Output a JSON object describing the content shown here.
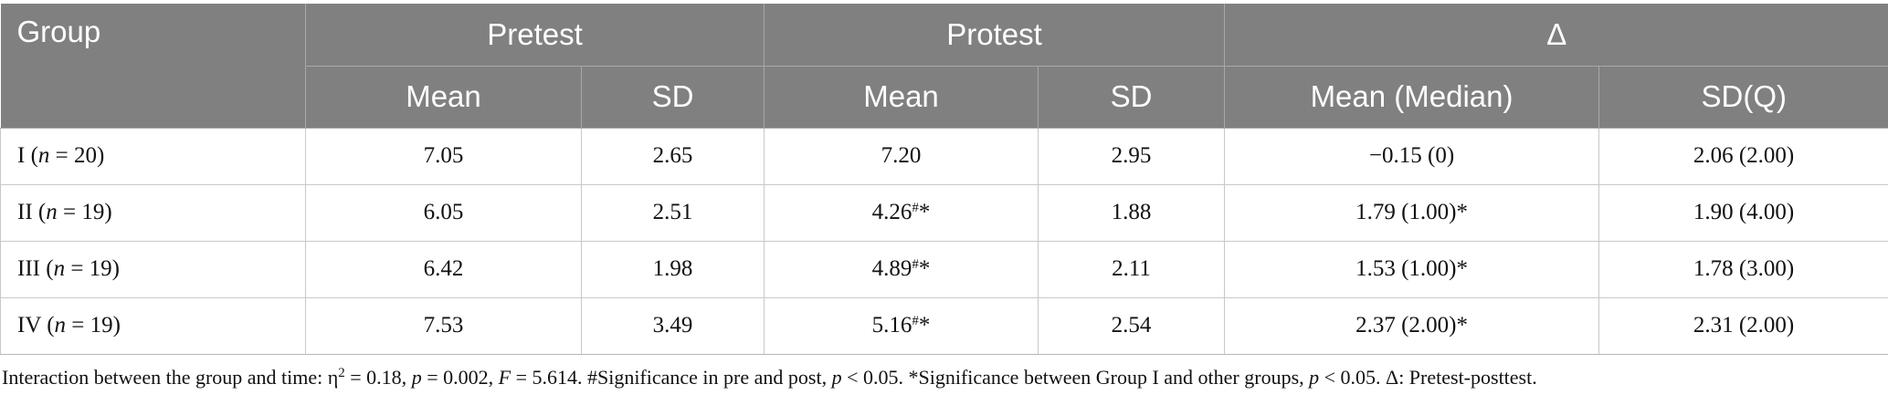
{
  "table": {
    "header": {
      "group": "Group",
      "pretest": "Pretest",
      "protest": "Protest",
      "delta": "Δ",
      "mean_1": "Mean",
      "sd_1": "SD",
      "mean_2": "Mean",
      "sd_2": "SD",
      "mean_median": "Mean (Median)",
      "sdq": "SD(Q)"
    },
    "rows": [
      {
        "group_roman": "I",
        "n_label": "n",
        "n_value": " = 20)",
        "pre_mean": "7.05",
        "pre_sd": "2.65",
        "post_mean": "7.20",
        "post_mark": "",
        "post_star": "",
        "post_sd": "2.95",
        "delta_mean": "−0.15 (0)",
        "delta_sd": "2.06 (2.00)"
      },
      {
        "group_roman": "II",
        "n_label": "n",
        "n_value": " = 19)",
        "pre_mean": "6.05",
        "pre_sd": "2.51",
        "post_mean": "4.26",
        "post_mark": "#",
        "post_star": "*",
        "post_sd": "1.88",
        "delta_mean": "1.79 (1.00)*",
        "delta_sd": "1.90 (4.00)"
      },
      {
        "group_roman": "III",
        "n_label": "n",
        "n_value": " = 19)",
        "pre_mean": "6.42",
        "pre_sd": "1.98",
        "post_mean": "4.89",
        "post_mark": "#",
        "post_star": "*",
        "post_sd": "2.11",
        "delta_mean": "1.53 (1.00)*",
        "delta_sd": "1.78 (3.00)"
      },
      {
        "group_roman": "IV",
        "n_label": "n",
        "n_value": " = 19)",
        "pre_mean": "7.53",
        "pre_sd": "3.49",
        "post_mean": "5.16",
        "post_mark": "#",
        "post_star": "*",
        "post_sd": "2.54",
        "delta_mean": "2.37 (2.00)*",
        "delta_sd": "2.31 (2.00)"
      }
    ]
  },
  "footnote": {
    "part1": "Interaction between the group and time: η",
    "eta_sup": "2",
    "part2": " = 0.18, ",
    "p1": "p",
    "part3": " = 0.002, ",
    "f": "F",
    "part4": " = 5.614. #Significance in pre and post, ",
    "p2": "p",
    "part5": " < 0.05. *Significance between Group I and other groups, ",
    "p3": "p",
    "part6": " < 0.05. Δ: Pretest-posttest."
  }
}
